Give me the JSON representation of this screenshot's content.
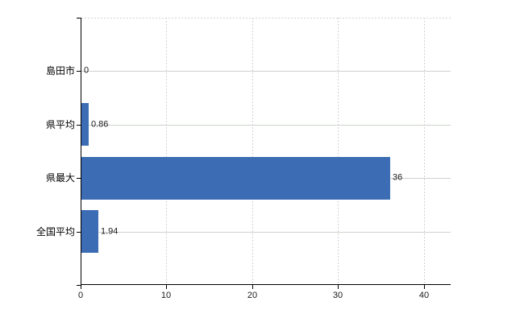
{
  "chart_data": {
    "type": "bar",
    "orientation": "horizontal",
    "title": "",
    "xlabel": "",
    "ylabel": "",
    "categories": [
      "島田市",
      "県平均",
      "県最大",
      "全国平均"
    ],
    "values": [
      0,
      0.86,
      36,
      1.94
    ],
    "value_labels": [
      "0",
      "0.86",
      "36",
      "1.94"
    ],
    "xlim": [
      0,
      43.1
    ],
    "x_ticks": [
      0,
      10,
      20,
      30,
      40
    ],
    "x_tick_labels": [
      "0",
      "10",
      "20",
      "30",
      "40"
    ],
    "grid": true,
    "legend": false,
    "colors": {
      "bar": "#3b6cb4",
      "h_gridline": "#ccd3ca",
      "v_gridline": "#d4d0d6",
      "axis": "#000000",
      "text": "#1a1a1a",
      "background": "#ffffff"
    }
  }
}
